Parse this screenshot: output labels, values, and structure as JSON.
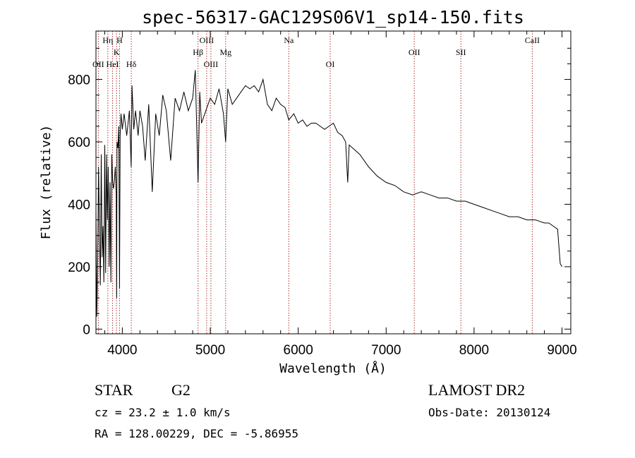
{
  "chart_data": {
    "type": "line",
    "title": "spec-56317-GAC129S06V1_sp14-150.fits",
    "xlabel": "Wavelength (Å)",
    "ylabel": "Flux (relative)",
    "xlim": [
      3700,
      9100
    ],
    "ylim": [
      -15,
      955
    ],
    "xticks": [
      4000,
      5000,
      6000,
      7000,
      8000,
      9000
    ],
    "yticks": [
      0,
      200,
      400,
      600,
      800
    ],
    "grid": false,
    "legend": "none",
    "series": [
      {
        "color": "#000000",
        "x": [
          3700,
          3710,
          3720,
          3730,
          3740,
          3750,
          3760,
          3770,
          3780,
          3790,
          3800,
          3810,
          3820,
          3830,
          3840,
          3850,
          3860,
          3870,
          3880,
          3890,
          3900,
          3910,
          3920,
          3930,
          3935,
          3940,
          3950,
          3960,
          3968,
          3975,
          3985,
          4000,
          4020,
          4050,
          4080,
          4100,
          4110,
          4130,
          4150,
          4180,
          4200,
          4230,
          4260,
          4300,
          4340,
          4380,
          4420,
          4460,
          4500,
          4550,
          4600,
          4650,
          4700,
          4750,
          4800,
          4830,
          4861,
          4880,
          4900,
          4950,
          5000,
          5050,
          5100,
          5150,
          5175,
          5200,
          5250,
          5300,
          5350,
          5400,
          5450,
          5500,
          5550,
          5600,
          5650,
          5700,
          5750,
          5800,
          5850,
          5893,
          5950,
          6000,
          6050,
          6100,
          6150,
          6200,
          6250,
          6300,
          6350,
          6400,
          6450,
          6500,
          6540,
          6563,
          6580,
          6620,
          6700,
          6800,
          6900,
          7000,
          7100,
          7200,
          7300,
          7400,
          7500,
          7600,
          7700,
          7800,
          7900,
          8000,
          8100,
          8200,
          8300,
          8400,
          8500,
          8600,
          8700,
          8800,
          8850,
          8900,
          8950,
          8980,
          9000
        ],
        "y": [
          380,
          40,
          230,
          520,
          300,
          140,
          560,
          230,
          330,
          150,
          590,
          180,
          560,
          350,
          520,
          200,
          470,
          150,
          560,
          470,
          450,
          480,
          520,
          430,
          100,
          600,
          580,
          650,
          130,
          620,
          690,
          640,
          690,
          620,
          700,
          520,
          780,
          640,
          700,
          620,
          700,
          650,
          540,
          720,
          440,
          690,
          620,
          750,
          700,
          540,
          740,
          700,
          760,
          700,
          740,
          830,
          470,
          760,
          660,
          700,
          740,
          720,
          770,
          690,
          600,
          770,
          720,
          740,
          760,
          780,
          770,
          780,
          760,
          800,
          720,
          700,
          740,
          720,
          710,
          670,
          690,
          660,
          670,
          650,
          660,
          660,
          650,
          640,
          650,
          660,
          630,
          620,
          600,
          470,
          590,
          580,
          560,
          520,
          490,
          470,
          460,
          440,
          430,
          440,
          430,
          420,
          420,
          410,
          410,
          400,
          390,
          380,
          370,
          360,
          360,
          350,
          350,
          340,
          340,
          330,
          320,
          210,
          200
        ]
      }
    ],
    "lines": [
      {
        "name": "OII",
        "wavelength": 3727,
        "row": 3
      },
      {
        "name": "Hη",
        "wavelength": 3835,
        "row": 1
      },
      {
        "name": "HeI",
        "wavelength": 3889,
        "row": 3
      },
      {
        "name": "K",
        "wavelength": 3934,
        "row": 2
      },
      {
        "name": "H",
        "wavelength": 3968,
        "row": 1
      },
      {
        "name": "Hδ",
        "wavelength": 4102,
        "row": 3
      },
      {
        "name": "Hβ",
        "wavelength": 4861,
        "row": 2
      },
      {
        "name": "OIII",
        "wavelength": 4959,
        "row": 1
      },
      {
        "name": "OIII",
        "wavelength": 5007,
        "row": 3
      },
      {
        "name": "Mg",
        "wavelength": 5175,
        "row": 2
      },
      {
        "name": "Na",
        "wavelength": 5893,
        "row": 1
      },
      {
        "name": "OI",
        "wavelength": 6364,
        "row": 3
      },
      {
        "name": "OII",
        "wavelength": 7320,
        "row": 2
      },
      {
        "name": "SII",
        "wavelength": 7850,
        "row": 2
      },
      {
        "name": "CaII",
        "wavelength": 8662,
        "row": 1
      }
    ]
  },
  "info": {
    "class": "STAR",
    "subclass": "G2",
    "survey": "LAMOST DR2",
    "cz": "cz = 23.2 ± 1.0 km/s",
    "obs_date": "Obs-Date: 20130124",
    "radec": "RA = 128.00229, DEC =  -5.86955"
  }
}
